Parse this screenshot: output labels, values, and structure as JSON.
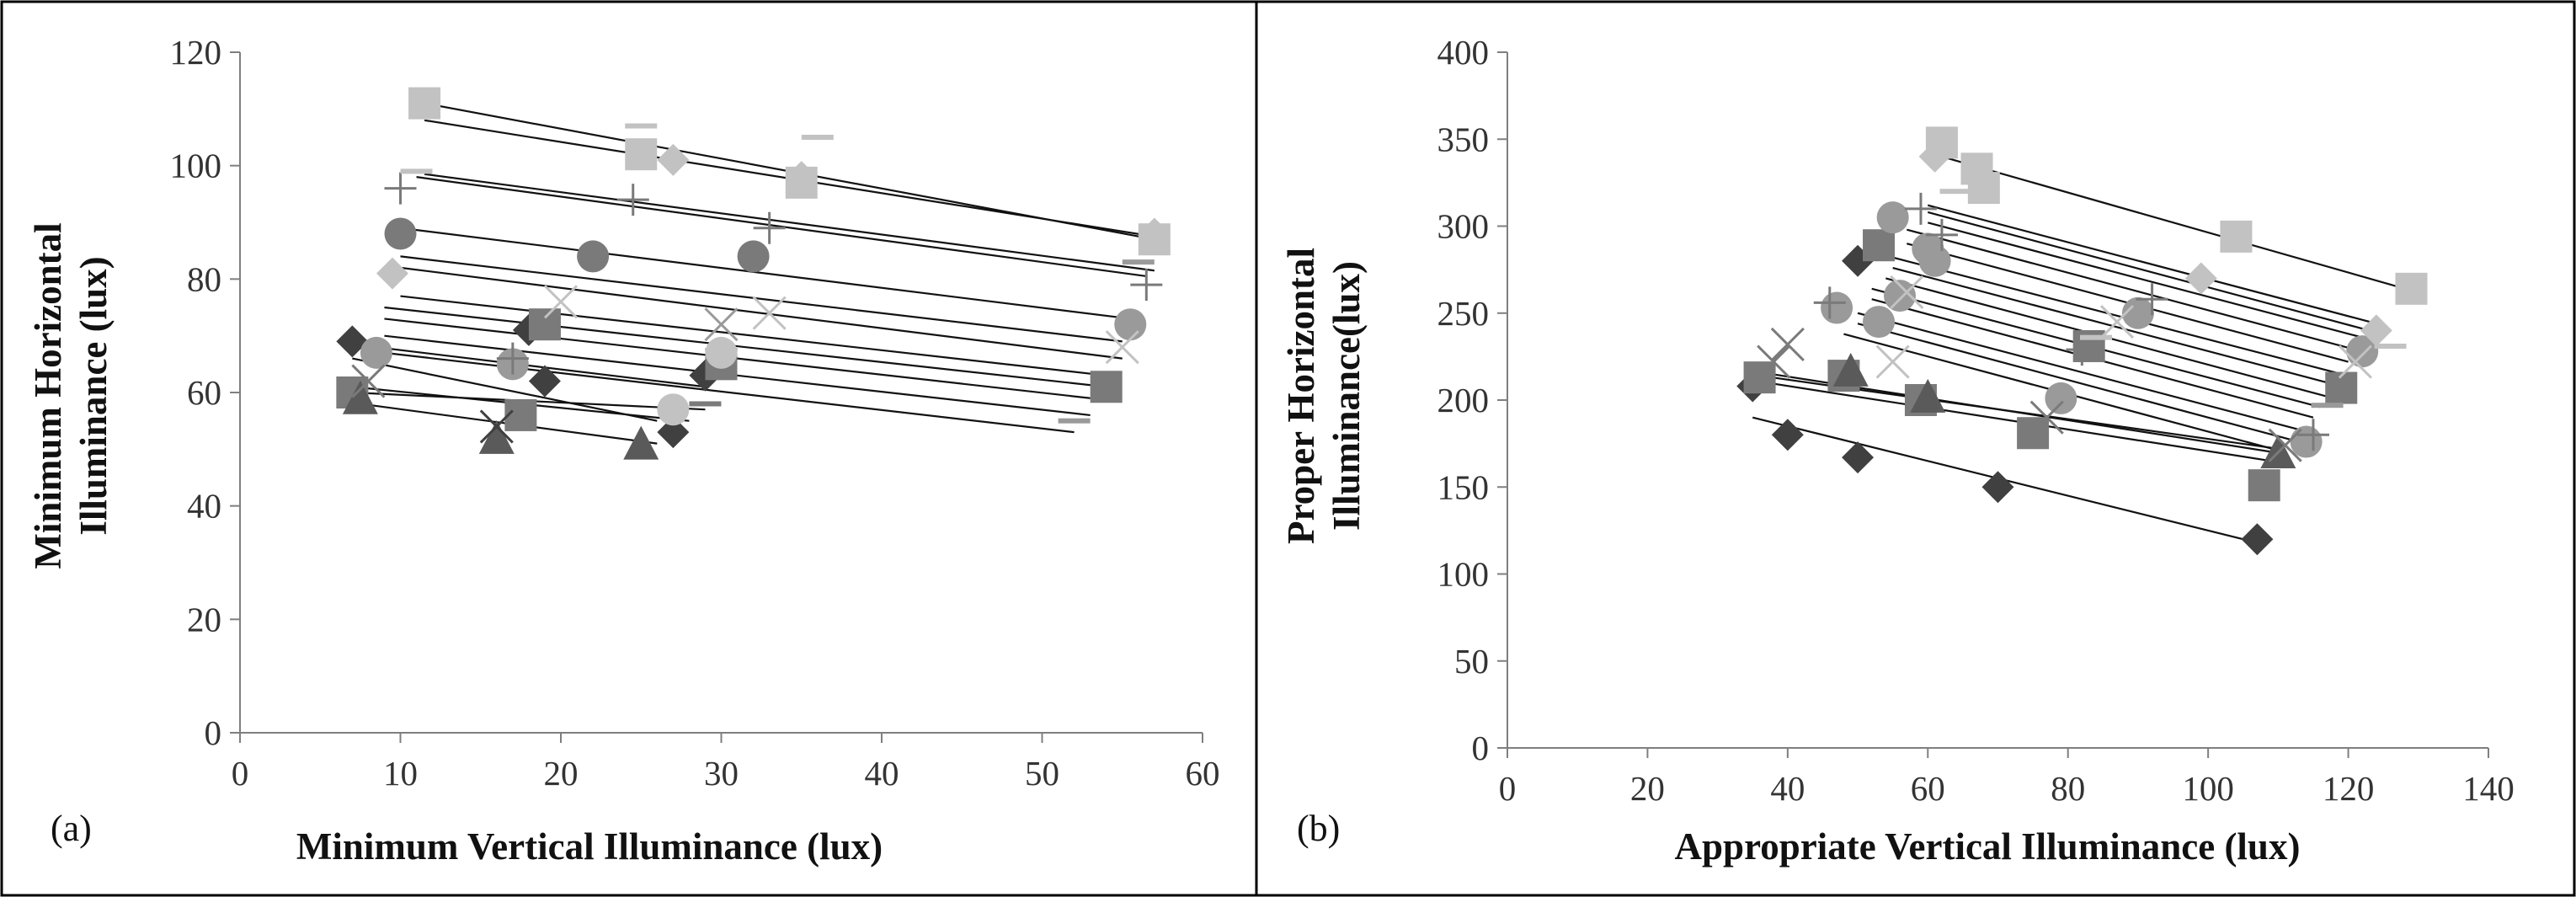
{
  "colors": {
    "series": [
      "#404040",
      "#7a7a7a",
      "#9a9a9a",
      "#c2c2c2",
      "#5a5a5a"
    ],
    "fit_line": "#111111",
    "axis": "#7f7f7f",
    "frame": "#000000"
  },
  "chart_data": [
    {
      "type": "scatter",
      "panel_label": "(a)",
      "xlabel": "Minimum Vertical Illuminance (lux)",
      "ylabel_lines": [
        "Minimum Horizontal",
        "Illuminance (lux)"
      ],
      "xlim": [
        0,
        60
      ],
      "ylim": [
        0,
        120
      ],
      "xticks": [
        0,
        10,
        20,
        30,
        40,
        50,
        60
      ],
      "yticks": [
        0,
        20,
        40,
        60,
        80,
        100,
        120
      ],
      "grid": false,
      "legend": "none",
      "points": [
        {
          "x": 7,
          "y": 69,
          "m": "diamond",
          "c": 0
        },
        {
          "x": 18,
          "y": 71,
          "m": "diamond",
          "c": 0
        },
        {
          "x": 19,
          "y": 62,
          "m": "diamond",
          "c": 0
        },
        {
          "x": 27,
          "y": 53,
          "m": "diamond",
          "c": 0
        },
        {
          "x": 29,
          "y": 63,
          "m": "diamond",
          "c": 0
        },
        {
          "x": 7,
          "y": 60,
          "m": "square",
          "c": 1
        },
        {
          "x": 17.5,
          "y": 56,
          "m": "square",
          "c": 1
        },
        {
          "x": 19,
          "y": 72,
          "m": "square",
          "c": 1
        },
        {
          "x": 30,
          "y": 65,
          "m": "square",
          "c": 1
        },
        {
          "x": 54,
          "y": 61,
          "m": "square",
          "c": 1
        },
        {
          "x": 11.5,
          "y": 111,
          "m": "square",
          "c": 3
        },
        {
          "x": 25,
          "y": 102,
          "m": "square",
          "c": 3
        },
        {
          "x": 35,
          "y": 97,
          "m": "square",
          "c": 3
        },
        {
          "x": 57,
          "y": 87,
          "m": "square",
          "c": 3
        },
        {
          "x": 7.5,
          "y": 59,
          "m": "triangle",
          "c": 4
        },
        {
          "x": 16,
          "y": 52,
          "m": "triangle",
          "c": 4
        },
        {
          "x": 25,
          "y": 51,
          "m": "triangle",
          "c": 4
        },
        {
          "x": 10,
          "y": 88,
          "m": "circle",
          "c": 1
        },
        {
          "x": 22,
          "y": 84,
          "m": "circle",
          "c": 1
        },
        {
          "x": 32,
          "y": 84,
          "m": "circle",
          "c": 1
        },
        {
          "x": 55.5,
          "y": 72,
          "m": "circle",
          "c": 2
        },
        {
          "x": 8.5,
          "y": 67,
          "m": "circle",
          "c": 2
        },
        {
          "x": 17,
          "y": 65,
          "m": "circle",
          "c": 2
        },
        {
          "x": 27,
          "y": 57,
          "m": "circle",
          "c": 3
        },
        {
          "x": 30,
          "y": 67,
          "m": "circle",
          "c": 3
        },
        {
          "x": 9.5,
          "y": 81,
          "m": "diamond",
          "c": 3
        },
        {
          "x": 27,
          "y": 101,
          "m": "diamond",
          "c": 3
        },
        {
          "x": 35,
          "y": 98,
          "m": "diamond",
          "c": 3
        },
        {
          "x": 57,
          "y": 88,
          "m": "diamond",
          "c": 3
        },
        {
          "x": 16,
          "y": 54,
          "m": "x",
          "c": 0
        },
        {
          "x": 20,
          "y": 76,
          "m": "x",
          "c": 3
        },
        {
          "x": 30,
          "y": 72,
          "m": "x",
          "c": 2
        },
        {
          "x": 33,
          "y": 74,
          "m": "x",
          "c": 3
        },
        {
          "x": 55,
          "y": 68,
          "m": "x",
          "c": 3
        },
        {
          "x": 8,
          "y": 62,
          "m": "x",
          "c": 1
        },
        {
          "x": 10,
          "y": 96,
          "m": "plus",
          "c": 1
        },
        {
          "x": 24.5,
          "y": 94,
          "m": "plus",
          "c": 1
        },
        {
          "x": 33,
          "y": 89,
          "m": "plus",
          "c": 1
        },
        {
          "x": 56.5,
          "y": 79,
          "m": "plus",
          "c": 1
        },
        {
          "x": 17,
          "y": 66,
          "m": "plus",
          "c": 1
        },
        {
          "x": 11,
          "y": 99,
          "m": "dash",
          "c": 3
        },
        {
          "x": 25,
          "y": 107,
          "m": "dash",
          "c": 3
        },
        {
          "x": 36,
          "y": 105,
          "m": "dash",
          "c": 3
        },
        {
          "x": 56,
          "y": 83,
          "m": "dash",
          "c": 2
        },
        {
          "x": 52,
          "y": 55,
          "m": "dash",
          "c": 2
        },
        {
          "x": 29,
          "y": 58,
          "m": "dash",
          "c": 1
        }
      ],
      "fit_lines": [
        [
          11.5,
          111,
          57,
          87
        ],
        [
          11.5,
          108,
          57,
          87.5
        ],
        [
          11.5,
          98.5,
          57,
          81.5
        ],
        [
          11,
          98,
          56.5,
          80.5
        ],
        [
          10,
          89,
          55.5,
          73
        ],
        [
          10,
          84,
          55,
          69
        ],
        [
          10,
          82,
          55,
          66
        ],
        [
          10,
          77,
          54,
          63
        ],
        [
          9,
          75,
          54,
          61
        ],
        [
          9,
          73,
          53,
          59
        ],
        [
          9,
          70,
          53,
          56
        ],
        [
          9,
          67,
          52,
          53
        ],
        [
          7,
          68.5,
          29,
          61
        ],
        [
          7,
          66,
          26,
          55
        ],
        [
          7,
          61,
          28,
          55
        ],
        [
          7,
          60,
          29,
          57
        ],
        [
          7.5,
          58,
          26,
          51
        ]
      ]
    },
    {
      "type": "scatter",
      "panel_label": "(b)",
      "xlabel": "Appropriate Vertical Illuminance (lux)",
      "ylabel_lines": [
        "Proper Horizontal",
        "Illuminance(lux)"
      ],
      "xlim": [
        0,
        140
      ],
      "ylim": [
        0,
        400
      ],
      "xticks": [
        0,
        20,
        40,
        60,
        80,
        100,
        120,
        140
      ],
      "yticks": [
        0,
        50,
        100,
        150,
        200,
        250,
        300,
        350,
        400
      ],
      "grid": false,
      "legend": "none",
      "points": [
        {
          "x": 35,
          "y": 208,
          "m": "diamond",
          "c": 0
        },
        {
          "x": 40,
          "y": 180,
          "m": "diamond",
          "c": 0
        },
        {
          "x": 50,
          "y": 167,
          "m": "diamond",
          "c": 0
        },
        {
          "x": 70,
          "y": 150,
          "m": "diamond",
          "c": 0
        },
        {
          "x": 107,
          "y": 120,
          "m": "diamond",
          "c": 0
        },
        {
          "x": 50,
          "y": 280,
          "m": "diamond",
          "c": 0
        },
        {
          "x": 36,
          "y": 213,
          "m": "square",
          "c": 1
        },
        {
          "x": 48,
          "y": 214,
          "m": "square",
          "c": 1
        },
        {
          "x": 59,
          "y": 200,
          "m": "square",
          "c": 1
        },
        {
          "x": 75,
          "y": 181,
          "m": "square",
          "c": 1
        },
        {
          "x": 83,
          "y": 231,
          "m": "square",
          "c": 1
        },
        {
          "x": 108,
          "y": 151,
          "m": "square",
          "c": 1
        },
        {
          "x": 119,
          "y": 207,
          "m": "square",
          "c": 1
        },
        {
          "x": 53,
          "y": 289,
          "m": "square",
          "c": 1
        },
        {
          "x": 62,
          "y": 348,
          "m": "square",
          "c": 3
        },
        {
          "x": 67,
          "y": 333,
          "m": "square",
          "c": 3
        },
        {
          "x": 68,
          "y": 322,
          "m": "square",
          "c": 3
        },
        {
          "x": 104,
          "y": 294,
          "m": "square",
          "c": 3
        },
        {
          "x": 129,
          "y": 264,
          "m": "square",
          "c": 3
        },
        {
          "x": 49,
          "y": 217,
          "m": "triangle",
          "c": 4
        },
        {
          "x": 60,
          "y": 202,
          "m": "triangle",
          "c": 4
        },
        {
          "x": 110,
          "y": 170,
          "m": "triangle",
          "c": 4
        },
        {
          "x": 47,
          "y": 253,
          "m": "circle",
          "c": 2
        },
        {
          "x": 53,
          "y": 245,
          "m": "circle",
          "c": 2
        },
        {
          "x": 55,
          "y": 305,
          "m": "circle",
          "c": 2
        },
        {
          "x": 56,
          "y": 260,
          "m": "circle",
          "c": 2
        },
        {
          "x": 60,
          "y": 287,
          "m": "circle",
          "c": 2
        },
        {
          "x": 61,
          "y": 280,
          "m": "circle",
          "c": 2
        },
        {
          "x": 79,
          "y": 201,
          "m": "circle",
          "c": 2
        },
        {
          "x": 90,
          "y": 250,
          "m": "circle",
          "c": 2
        },
        {
          "x": 114,
          "y": 176,
          "m": "circle",
          "c": 2
        },
        {
          "x": 122,
          "y": 228,
          "m": "circle",
          "c": 2
        },
        {
          "x": 61,
          "y": 340,
          "m": "diamond",
          "c": 3
        },
        {
          "x": 99,
          "y": 270,
          "m": "diamond",
          "c": 3
        },
        {
          "x": 124,
          "y": 240,
          "m": "diamond",
          "c": 3
        },
        {
          "x": 40,
          "y": 232,
          "m": "x",
          "c": 1
        },
        {
          "x": 38,
          "y": 222,
          "m": "x",
          "c": 1
        },
        {
          "x": 55,
          "y": 222,
          "m": "x",
          "c": 3
        },
        {
          "x": 57,
          "y": 262,
          "m": "x",
          "c": 3
        },
        {
          "x": 77,
          "y": 190,
          "m": "x",
          "c": 1
        },
        {
          "x": 87,
          "y": 245,
          "m": "x",
          "c": 3
        },
        {
          "x": 111,
          "y": 174,
          "m": "x",
          "c": 1
        },
        {
          "x": 121,
          "y": 222,
          "m": "x",
          "c": 3
        },
        {
          "x": 46,
          "y": 256,
          "m": "plus",
          "c": 1
        },
        {
          "x": 59,
          "y": 310,
          "m": "plus",
          "c": 1
        },
        {
          "x": 62,
          "y": 295,
          "m": "plus",
          "c": 1
        },
        {
          "x": 82,
          "y": 229,
          "m": "plus",
          "c": 1
        },
        {
          "x": 92,
          "y": 258,
          "m": "plus",
          "c": 1
        },
        {
          "x": 115,
          "y": 180,
          "m": "plus",
          "c": 1
        },
        {
          "x": 64,
          "y": 320,
          "m": "dash",
          "c": 3
        },
        {
          "x": 84,
          "y": 236,
          "m": "dash",
          "c": 3
        },
        {
          "x": 117,
          "y": 197,
          "m": "dash",
          "c": 2
        },
        {
          "x": 126,
          "y": 231,
          "m": "dash",
          "c": 3
        }
      ],
      "fit_lines": [
        [
          62,
          340,
          129,
          263
        ],
        [
          60,
          312,
          124,
          244
        ],
        [
          60,
          308,
          123,
          240
        ],
        [
          60,
          302,
          122,
          236
        ],
        [
          57,
          298,
          121,
          229
        ],
        [
          57,
          290,
          120,
          222
        ],
        [
          55,
          282,
          119,
          215
        ],
        [
          55,
          276,
          118,
          209
        ],
        [
          54,
          270,
          117,
          202
        ],
        [
          52,
          264,
          116,
          196
        ],
        [
          52,
          258,
          115,
          190
        ],
        [
          50,
          250,
          113,
          183
        ],
        [
          50,
          244,
          112,
          177
        ],
        [
          48,
          238,
          111,
          170
        ],
        [
          36,
          216,
          111,
          169
        ],
        [
          36,
          214,
          110,
          172
        ],
        [
          37,
          210,
          109,
          165
        ],
        [
          35,
          190,
          107,
          118
        ]
      ]
    }
  ]
}
